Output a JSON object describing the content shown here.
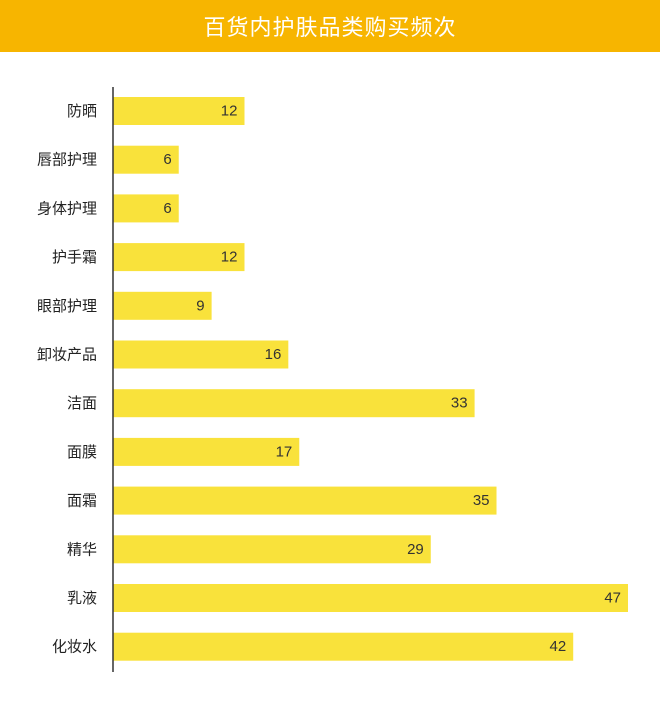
{
  "title": "百货内护肤品类购买频次",
  "colors": {
    "header": "#f7b500",
    "bar": "#f9e23b",
    "axis": "#333333"
  },
  "chart_data": {
    "type": "bar",
    "orientation": "horizontal",
    "title": "百货内护肤品类购买频次",
    "xlabel": "",
    "ylabel": "",
    "xlim": [
      0,
      47
    ],
    "grid": false,
    "categories": [
      "防晒",
      "唇部护理",
      "身体护理",
      "护手霜",
      "眼部护理",
      "卸妆产品",
      "洁面",
      "面膜",
      "面霜",
      "精华",
      "乳液",
      "化妆水"
    ],
    "values": [
      12,
      6,
      6,
      12,
      9,
      16,
      33,
      17,
      35,
      29,
      47,
      42
    ]
  }
}
